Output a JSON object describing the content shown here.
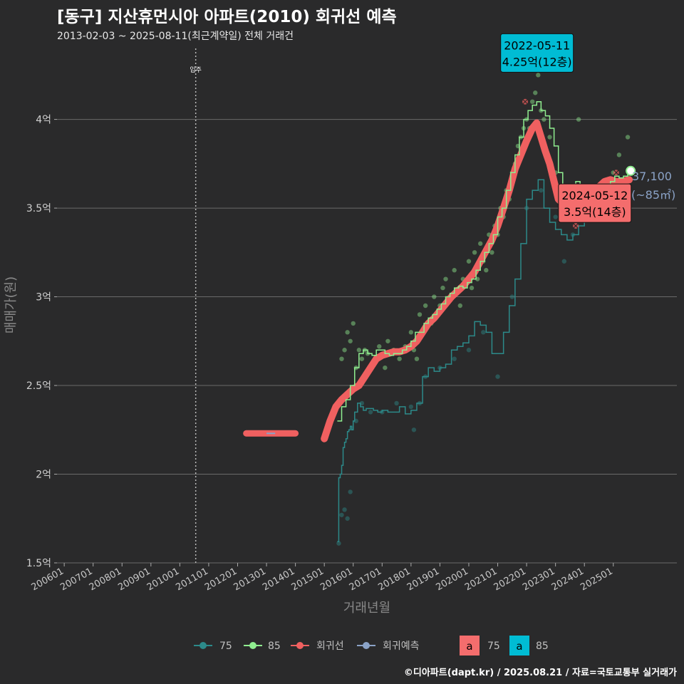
{
  "header": {
    "title": "[동구] 지산휴먼시아 아파트(2010) 회귀선 예측",
    "subtitle": "2013-02-03 ~ 2025-08-11(최근계약일) 전체 거래건"
  },
  "footer": {
    "credit": "©디아파트(dapt.kr) / 2025.08.21 / 자료=국토교통부 실거래가"
  },
  "colors": {
    "background": "#2a2a2b",
    "grid": "#6a6a6a",
    "s75": "#2c8a8a",
    "s85": "#90ee90",
    "regression": "#f06060",
    "prediction": "#8ba3c7",
    "label_cyan": "#00bcd4",
    "label_red": "#f46d6d"
  },
  "chart_data": {
    "type": "line",
    "title": "[동구] 지산휴먼시아 아파트(2010) 회귀선 예측",
    "xlabel": "거래년월",
    "ylabel": "매매가(원)",
    "xlim": [
      2005.75,
      2027.2
    ],
    "ylim": [
      1.5,
      4.4
    ],
    "yticks": [
      1.5,
      2,
      2.5,
      3,
      3.5,
      4
    ],
    "ytick_labels": [
      "1.5억",
      "2억",
      "2.5억",
      "3억",
      "3.5억",
      "4억"
    ],
    "xtick_values": [
      2006,
      2007,
      2008,
      2009,
      2010,
      2011,
      2012,
      2013,
      2014,
      2015,
      2016,
      2017,
      2018,
      2019,
      2020,
      2021,
      2022,
      2023,
      2024,
      2025
    ],
    "xtick_labels": [
      "200601",
      "200701",
      "200801",
      "200901",
      "201001",
      "201101",
      "201201",
      "201301",
      "201401",
      "201501",
      "201601",
      "201701",
      "201801",
      "201901",
      "202001",
      "202101",
      "202201",
      "202301",
      "202401",
      "202501"
    ],
    "move_in": {
      "x": 2010.55,
      "label": "입주"
    },
    "series": [
      {
        "name": "75",
        "x": [
          2015.45,
          2015.5,
          2015.55,
          2015.6,
          2015.65,
          2015.7,
          2015.75,
          2015.8,
          2015.85,
          2015.9,
          2015.95,
          2016.0,
          2016.05,
          2016.15,
          2016.25,
          2016.35,
          2016.45,
          2016.55,
          2016.7,
          2016.85,
          2017.0,
          2017.2,
          2017.4,
          2017.6,
          2017.8,
          2018.0,
          2018.2,
          2018.4,
          2018.6,
          2018.8,
          2019.0,
          2019.2,
          2019.4,
          2019.6,
          2019.8,
          2020.0,
          2020.2,
          2020.4,
          2020.6,
          2020.8,
          2021.0,
          2021.2,
          2021.4,
          2021.6,
          2021.8,
          2022.0,
          2022.2,
          2022.4,
          2022.6,
          2022.8,
          2023.0,
          2023.2,
          2023.4,
          2023.6,
          2023.8,
          2024.0,
          2024.2,
          2024.4
        ],
        "values": [
          1.62,
          1.98,
          2.0,
          2.05,
          2.15,
          2.18,
          2.2,
          2.24,
          2.25,
          2.27,
          2.25,
          2.3,
          2.35,
          2.4,
          2.38,
          2.36,
          2.37,
          2.37,
          2.36,
          2.35,
          2.36,
          2.35,
          2.35,
          2.38,
          2.34,
          2.36,
          2.4,
          2.55,
          2.6,
          2.58,
          2.6,
          2.62,
          2.7,
          2.72,
          2.74,
          2.78,
          2.86,
          2.84,
          2.8,
          2.68,
          2.68,
          2.8,
          2.95,
          3.1,
          3.3,
          3.55,
          3.6,
          3.66,
          3.5,
          3.42,
          3.38,
          3.35,
          3.32,
          3.35,
          3.4,
          3.45,
          3.5,
          3.55
        ]
      },
      {
        "name": "85",
        "x": [
          2015.45,
          2015.6,
          2015.75,
          2015.9,
          2016.05,
          2016.2,
          2016.35,
          2016.5,
          2016.65,
          2016.8,
          2016.95,
          2017.1,
          2017.25,
          2017.4,
          2017.55,
          2017.7,
          2017.85,
          2018.0,
          2018.15,
          2018.3,
          2018.45,
          2018.6,
          2018.75,
          2018.9,
          2019.05,
          2019.2,
          2019.35,
          2019.5,
          2019.65,
          2019.8,
          2019.95,
          2020.1,
          2020.25,
          2020.4,
          2020.55,
          2020.7,
          2020.85,
          2021.0,
          2021.15,
          2021.3,
          2021.45,
          2021.6,
          2021.75,
          2021.9,
          2022.05,
          2022.2,
          2022.35,
          2022.5,
          2022.65,
          2022.8,
          2022.95,
          2023.1,
          2023.25,
          2023.4,
          2023.55,
          2023.7,
          2023.85,
          2024.0,
          2024.15,
          2024.3,
          2024.45,
          2024.6,
          2024.75,
          2024.9,
          2025.05,
          2025.2,
          2025.35,
          2025.5
        ],
        "values": [
          2.3,
          2.38,
          2.42,
          2.5,
          2.6,
          2.68,
          2.7,
          2.68,
          2.67,
          2.7,
          2.7,
          2.68,
          2.67,
          2.68,
          2.68,
          2.7,
          2.72,
          2.75,
          2.8,
          2.8,
          2.85,
          2.88,
          2.9,
          2.93,
          2.96,
          3.0,
          3.02,
          3.05,
          3.06,
          3.05,
          3.08,
          3.1,
          3.15,
          3.2,
          3.25,
          3.3,
          3.35,
          3.45,
          3.5,
          3.6,
          3.7,
          3.8,
          3.9,
          4.0,
          4.05,
          4.08,
          4.1,
          4.05,
          4.02,
          3.95,
          3.85,
          3.7,
          3.6,
          3.55,
          3.62,
          3.65,
          3.63,
          3.6,
          3.55,
          3.5,
          3.5,
          3.55,
          3.6,
          3.65,
          3.68,
          3.67,
          3.68,
          3.7
        ]
      },
      {
        "name": "회귀선",
        "x": [
          2012.3,
          2014.0,
          2015.0,
          2015.2,
          2015.4,
          2015.6,
          2015.8,
          2016.0,
          2016.2,
          2016.4,
          2016.6,
          2016.8,
          2017.0,
          2017.2,
          2017.4,
          2017.6,
          2017.8,
          2018.0,
          2018.2,
          2018.4,
          2018.6,
          2018.8,
          2019.0,
          2019.2,
          2019.4,
          2019.6,
          2019.8,
          2020.0,
          2020.2,
          2020.4,
          2020.6,
          2020.8,
          2021.0,
          2021.2,
          2021.4,
          2021.6,
          2021.8,
          2022.0,
          2022.2,
          2022.35,
          2022.5,
          2022.65,
          2022.8,
          2022.95,
          2023.1,
          2023.3,
          2023.5,
          2023.7,
          2023.9,
          2024.1,
          2024.3,
          2024.5,
          2024.7,
          2024.9,
          2025.1,
          2025.3,
          2025.55
        ],
        "values": [
          2.23,
          2.23,
          2.2,
          2.3,
          2.38,
          2.42,
          2.45,
          2.48,
          2.5,
          2.55,
          2.6,
          2.65,
          2.67,
          2.68,
          2.69,
          2.69,
          2.7,
          2.72,
          2.75,
          2.8,
          2.85,
          2.88,
          2.92,
          2.96,
          3.0,
          3.03,
          3.06,
          3.1,
          3.14,
          3.2,
          3.26,
          3.32,
          3.4,
          3.5,
          3.6,
          3.72,
          3.8,
          3.88,
          3.95,
          3.98,
          3.9,
          3.82,
          3.75,
          3.65,
          3.55,
          3.52,
          3.5,
          3.5,
          3.52,
          3.55,
          3.58,
          3.62,
          3.65,
          3.66,
          3.65,
          3.65,
          3.66
        ]
      },
      {
        "name": "회귀예측",
        "x": [
          2013.0,
          2013.3
        ],
        "values": [
          2.23,
          2.23
        ]
      }
    ],
    "scatter_75": {
      "x": [
        2015.5,
        2015.6,
        2015.7,
        2015.8,
        2015.9,
        2016.1,
        2016.3,
        2016.6,
        2017.0,
        2017.5,
        2018.0,
        2018.1,
        2018.3,
        2018.5,
        2019.0,
        2019.5,
        2020.0,
        2020.5,
        2021.0,
        2021.5,
        2022.0,
        2022.5,
        2023.0,
        2023.3,
        2023.6,
        2024.0
      ],
      "values": [
        1.61,
        1.77,
        1.8,
        1.75,
        1.9,
        2.3,
        2.4,
        2.35,
        2.35,
        2.4,
        2.38,
        2.25,
        2.4,
        2.55,
        2.6,
        2.65,
        2.7,
        2.8,
        2.55,
        3.0,
        3.5,
        3.6,
        3.45,
        3.2,
        3.35,
        3.45
      ]
    },
    "scatter_85": {
      "x": [
        2015.6,
        2015.7,
        2015.8,
        2015.9,
        2016.0,
        2016.1,
        2016.2,
        2016.3,
        2016.4,
        2016.5,
        2016.7,
        2016.9,
        2017.1,
        2017.2,
        2017.4,
        2017.6,
        2017.8,
        2018.0,
        2018.1,
        2018.2,
        2018.3,
        2018.5,
        2018.7,
        2018.8,
        2019.0,
        2019.1,
        2019.2,
        2019.4,
        2019.5,
        2019.7,
        2019.8,
        2020.0,
        2020.1,
        2020.2,
        2020.3,
        2020.4,
        2020.5,
        2020.6,
        2020.7,
        2020.8,
        2020.9,
        2021.0,
        2021.1,
        2021.2,
        2021.3,
        2021.4,
        2021.5,
        2021.6,
        2021.7,
        2021.8,
        2021.9,
        2022.0,
        2022.1,
        2022.2,
        2022.3,
        2022.4,
        2022.5,
        2022.6,
        2022.8,
        2023.0,
        2023.2,
        2023.5,
        2023.8,
        2024.0,
        2024.3,
        2024.6,
        2024.8,
        2025.0,
        2025.2,
        2025.5
      ],
      "values": [
        2.65,
        2.7,
        2.8,
        2.75,
        2.85,
        2.6,
        2.7,
        2.65,
        2.7,
        2.68,
        2.62,
        2.72,
        2.6,
        2.75,
        2.7,
        2.65,
        2.72,
        2.8,
        2.7,
        2.65,
        2.9,
        2.95,
        2.85,
        3.0,
        2.95,
        3.05,
        3.1,
        3.0,
        3.15,
        2.95,
        3.1,
        3.2,
        3.05,
        3.25,
        3.1,
        3.3,
        3.2,
        3.15,
        3.35,
        3.25,
        3.4,
        3.35,
        3.5,
        3.45,
        3.6,
        3.55,
        3.7,
        3.75,
        3.85,
        3.9,
        3.95,
        4.0,
        3.95,
        4.1,
        4.15,
        4.25,
        4.05,
        4.0,
        3.9,
        3.7,
        3.6,
        3.55,
        4.0,
        3.6,
        3.5,
        3.55,
        3.6,
        3.7,
        3.8,
        3.9
      ]
    },
    "highlight_points": [
      {
        "x": 2021.95,
        "value": 4.1
      },
      {
        "x": 2023.7,
        "value": 3.4
      },
      {
        "x": 2025.0,
        "value": 3.55
      },
      {
        "x": 2025.1,
        "value": 3.7
      }
    ],
    "last_point": {
      "x": 2025.6,
      "value": 3.71
    },
    "annotations": [
      {
        "x": 2022.36,
        "value": 4.25,
        "date": "2022-05-11",
        "price": "4.25억(12층)",
        "style": "cyan"
      },
      {
        "x": 2024.36,
        "value": 3.5,
        "date": "2024-05-12",
        "price": "3.5억(14층)",
        "style": "red"
      }
    ],
    "end_label": {
      "price": "37,100",
      "area": "(~85㎡)"
    }
  },
  "legend": {
    "lines": [
      "75",
      "85",
      "회귀선",
      "회귀예측"
    ],
    "label_keys": [
      {
        "glyph": "a",
        "name": "75"
      },
      {
        "glyph": "a",
        "name": "85"
      }
    ]
  }
}
